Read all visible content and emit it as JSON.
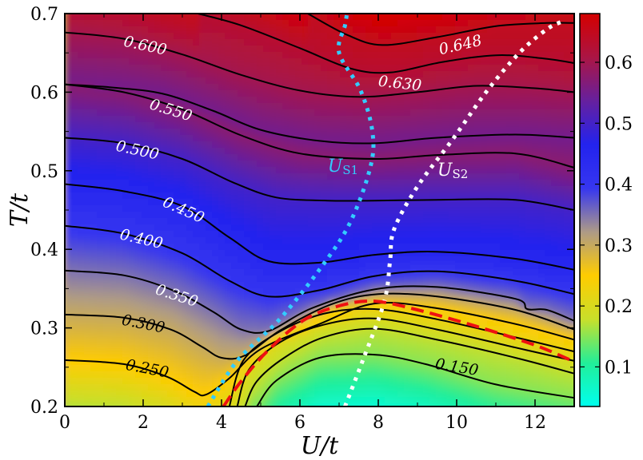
{
  "chart_data": {
    "type": "heatmap",
    "title": "",
    "xlabel": "U/t",
    "ylabel": "T/t",
    "xlim": [
      0,
      13
    ],
    "ylim": [
      0.2,
      0.7
    ],
    "x_ticks": [
      0,
      2,
      4,
      6,
      8,
      10,
      12
    ],
    "x_tick_labels": [
      "0",
      "2",
      "4",
      "6",
      "8",
      "10",
      "12"
    ],
    "y_ticks": [
      0.2,
      0.3,
      0.4,
      0.5,
      0.6,
      0.7
    ],
    "y_tick_labels": [
      "0.2",
      "0.3",
      "0.4",
      "0.5",
      "0.6",
      "0.7"
    ],
    "colorbar": {
      "range": [
        0.035,
        0.68
      ],
      "ticks": [
        0.1,
        0.2,
        0.3,
        0.4,
        0.5,
        0.6
      ],
      "tick_labels": [
        "0.1",
        "0.2",
        "0.3",
        "0.4",
        "0.5",
        "0.6"
      ],
      "colormap": [
        "#00ffee",
        "#22ee99",
        "#c9df2a",
        "#ffcc00",
        "#ad9a87",
        "#3636f0",
        "#2323ee",
        "#66209e",
        "#ab1544",
        "#d40000"
      ]
    },
    "contours": [
      {
        "level": "0.150",
        "points": [
          [
            4.9,
            0.2
          ],
          [
            5.4,
            0.233
          ],
          [
            6.5,
            0.262
          ],
          [
            7.9,
            0.266
          ],
          [
            9.2,
            0.254
          ],
          [
            11,
            0.228
          ],
          [
            13,
            0.211
          ]
        ]
      },
      {
        "level": "",
        "points": [
          [
            4.6,
            0.2
          ],
          [
            4.9,
            0.232
          ],
          [
            5.6,
            0.262
          ],
          [
            6.6,
            0.288
          ],
          [
            7.9,
            0.299
          ],
          [
            9.5,
            0.285
          ],
          [
            11.5,
            0.262
          ],
          [
            13,
            0.242
          ]
        ]
      },
      {
        "level": "",
        "points": [
          [
            4.4,
            0.2
          ],
          [
            4.7,
            0.247
          ],
          [
            5.5,
            0.282
          ],
          [
            6.6,
            0.304
          ],
          [
            7.9,
            0.312
          ],
          [
            9.5,
            0.298
          ],
          [
            11.5,
            0.275
          ],
          [
            13,
            0.258
          ]
        ]
      },
      {
        "level": "",
        "points": [
          [
            4.2,
            0.2
          ],
          [
            4.55,
            0.258
          ],
          [
            5.4,
            0.293
          ],
          [
            6.6,
            0.318
          ],
          [
            7.9,
            0.324
          ],
          [
            9.5,
            0.311
          ],
          [
            11.5,
            0.288
          ],
          [
            13,
            0.27
          ]
        ]
      },
      {
        "level": "0.250",
        "points": [
          [
            0,
            0.259
          ],
          [
            1.5,
            0.254
          ],
          [
            2.6,
            0.238
          ],
          [
            3.3,
            0.219
          ],
          [
            3.6,
            0.215
          ],
          [
            4.2,
            0.236
          ],
          [
            5,
            0.273
          ],
          [
            6.5,
            0.305
          ],
          [
            7.9,
            0.331
          ],
          [
            9.5,
            0.325
          ],
          [
            11.5,
            0.305
          ],
          [
            13,
            0.285
          ]
        ]
      },
      {
        "level": "0.300",
        "points": [
          [
            0,
            0.317
          ],
          [
            1.5,
            0.313
          ],
          [
            2.7,
            0.298
          ],
          [
            3.5,
            0.276
          ],
          [
            4,
            0.262
          ],
          [
            4.6,
            0.265
          ],
          [
            5.5,
            0.297
          ],
          [
            6.8,
            0.33
          ],
          [
            8,
            0.343
          ],
          [
            9.5,
            0.34
          ],
          [
            11.5,
            0.323
          ],
          [
            13,
            0.298
          ]
        ]
      },
      {
        "level": "0.350",
        "points": [
          [
            0,
            0.373
          ],
          [
            1.5,
            0.367
          ],
          [
            2.8,
            0.347
          ],
          [
            3.8,
            0.32
          ],
          [
            4.5,
            0.298
          ],
          [
            5.2,
            0.296
          ],
          [
            6.3,
            0.325
          ],
          [
            7.9,
            0.349
          ],
          [
            9.5,
            0.352
          ],
          [
            11.5,
            0.337
          ],
          [
            11.8,
            0.324
          ],
          [
            12.3,
            0.323
          ],
          [
            13,
            0.309
          ]
        ]
      },
      {
        "level": "0.400",
        "points": [
          [
            0,
            0.43
          ],
          [
            1.5,
            0.42
          ],
          [
            3,
            0.395
          ],
          [
            4.2,
            0.36
          ],
          [
            5.2,
            0.34
          ],
          [
            6.5,
            0.348
          ],
          [
            7.9,
            0.366
          ],
          [
            9.5,
            0.372
          ],
          [
            11.5,
            0.36
          ],
          [
            13,
            0.343
          ]
        ]
      },
      {
        "level": "0.450",
        "points": [
          [
            0,
            0.483
          ],
          [
            1.5,
            0.474
          ],
          [
            3,
            0.455
          ],
          [
            4.2,
            0.415
          ],
          [
            5.2,
            0.385
          ],
          [
            6.5,
            0.383
          ],
          [
            7.9,
            0.393
          ],
          [
            9.5,
            0.397
          ],
          [
            11.5,
            0.388
          ],
          [
            13,
            0.374
          ]
        ]
      },
      {
        "level": "0.500",
        "points": [
          [
            0,
            0.542
          ],
          [
            1.5,
            0.535
          ],
          [
            3,
            0.515
          ],
          [
            4.3,
            0.485
          ],
          [
            5.4,
            0.466
          ],
          [
            6.7,
            0.462
          ],
          [
            7.9,
            0.462
          ],
          [
            9.5,
            0.463
          ],
          [
            11.5,
            0.463
          ],
          [
            13,
            0.45
          ]
        ]
      },
      {
        "level": "",
        "points": [
          [
            0,
            0.61
          ],
          [
            1.5,
            0.6
          ],
          [
            3,
            0.578
          ],
          [
            4.5,
            0.545
          ],
          [
            6,
            0.522
          ],
          [
            7.9,
            0.515
          ],
          [
            9.5,
            0.52
          ],
          [
            11.5,
            0.522
          ],
          [
            13,
            0.504
          ]
        ]
      },
      {
        "level": "0.550",
        "points": [
          [
            0,
            0.61
          ],
          [
            1.2,
            0.606
          ],
          [
            2.5,
            0.598
          ],
          [
            3.8,
            0.576
          ],
          [
            5,
            0.552
          ],
          [
            6.5,
            0.538
          ],
          [
            7.9,
            0.535
          ],
          [
            9.5,
            0.542
          ],
          [
            11.5,
            0.546
          ],
          [
            13,
            0.542
          ]
        ]
      },
      {
        "level": "0.600",
        "points": [
          [
            0,
            0.676
          ],
          [
            1.5,
            0.668
          ],
          [
            3,
            0.648
          ],
          [
            4.5,
            0.622
          ],
          [
            6,
            0.602
          ],
          [
            7.5,
            0.594
          ],
          [
            9,
            0.6
          ],
          [
            10.5,
            0.608
          ],
          [
            12,
            0.605
          ],
          [
            13,
            0.6
          ]
        ]
      },
      {
        "level": "0.630",
        "points": [
          [
            3.4,
            0.7
          ],
          [
            4.5,
            0.685
          ],
          [
            6,
            0.656
          ],
          [
            7.3,
            0.63
          ],
          [
            8.3,
            0.625
          ],
          [
            9.6,
            0.638
          ],
          [
            11,
            0.647
          ],
          [
            12.2,
            0.643
          ],
          [
            13,
            0.637
          ]
        ]
      },
      {
        "level": "0.648",
        "points": [
          [
            6.2,
            0.7
          ],
          [
            7.2,
            0.673
          ],
          [
            8.1,
            0.66
          ],
          [
            9.5,
            0.67
          ],
          [
            11,
            0.684
          ],
          [
            12.3,
            0.688
          ],
          [
            13,
            0.688
          ]
        ]
      }
    ],
    "contour_labels": [
      {
        "text": "0.600",
        "x": 2.05,
        "y": 0.658,
        "angle": 12,
        "color": "#ffffff"
      },
      {
        "text": "0.550",
        "x": 2.7,
        "y": 0.576,
        "angle": 17,
        "color": "#ffffff"
      },
      {
        "text": "0.500",
        "x": 1.85,
        "y": 0.525,
        "angle": 12,
        "color": "#ffffff"
      },
      {
        "text": "0.450",
        "x": 3.02,
        "y": 0.449,
        "angle": 24,
        "color": "#ffffff"
      },
      {
        "text": "0.400",
        "x": 1.95,
        "y": 0.412,
        "angle": 13,
        "color": "#ffffff"
      },
      {
        "text": "0.350",
        "x": 2.85,
        "y": 0.34,
        "angle": 18,
        "color": "#ffffff"
      },
      {
        "text": "0.300",
        "x": 2.0,
        "y": 0.304,
        "angle": 11,
        "color": "#000000"
      },
      {
        "text": "0.250",
        "x": 2.1,
        "y": 0.247,
        "angle": 11,
        "color": "#000000"
      },
      {
        "text": "0.630",
        "x": 8.55,
        "y": 0.61,
        "angle": 6,
        "color": "#ffffff"
      },
      {
        "text": "0.648",
        "x": 10.1,
        "y": 0.659,
        "angle": -13,
        "color": "#ffffff"
      },
      {
        "text": "0.150",
        "x": 10.0,
        "y": 0.249,
        "angle": 9,
        "color": "#000000"
      }
    ],
    "boundaries": [
      {
        "name": "U_S1",
        "label": "U",
        "subscript": "S1",
        "color": "#33ccff",
        "label_x": 7.1,
        "label_y": 0.505,
        "points": [
          [
            3.65,
            0.2
          ],
          [
            4.4,
            0.258
          ],
          [
            5.5,
            0.312
          ],
          [
            6.6,
            0.381
          ],
          [
            7.3,
            0.436
          ],
          [
            7.8,
            0.505
          ],
          [
            7.85,
            0.55
          ],
          [
            7.55,
            0.602
          ],
          [
            7.0,
            0.65
          ],
          [
            7.15,
            0.685
          ],
          [
            7.2,
            0.7
          ]
        ]
      },
      {
        "name": "U_S2",
        "label": "U",
        "subscript": "S2",
        "color": "#ffffff",
        "label_x": 9.9,
        "label_y": 0.5,
        "points": [
          [
            7.15,
            0.2
          ],
          [
            7.6,
            0.258
          ],
          [
            8.15,
            0.333
          ],
          [
            8.3,
            0.385
          ],
          [
            8.4,
            0.425
          ],
          [
            9.0,
            0.48
          ],
          [
            9.9,
            0.54
          ],
          [
            10.75,
            0.6
          ],
          [
            11.6,
            0.65
          ],
          [
            12.3,
            0.68
          ],
          [
            12.7,
            0.69
          ]
        ]
      },
      {
        "name": "dashed_boundary",
        "label": "",
        "subscript": "",
        "color": "#ee1111",
        "points": [
          [
            4.05,
            0.2
          ],
          [
            4.5,
            0.232
          ],
          [
            5.2,
            0.272
          ],
          [
            6.1,
            0.31
          ],
          [
            7.0,
            0.328
          ],
          [
            7.9,
            0.334
          ],
          [
            9.0,
            0.323
          ],
          [
            10.5,
            0.302
          ],
          [
            12,
            0.278
          ],
          [
            13,
            0.257
          ]
        ]
      }
    ]
  }
}
